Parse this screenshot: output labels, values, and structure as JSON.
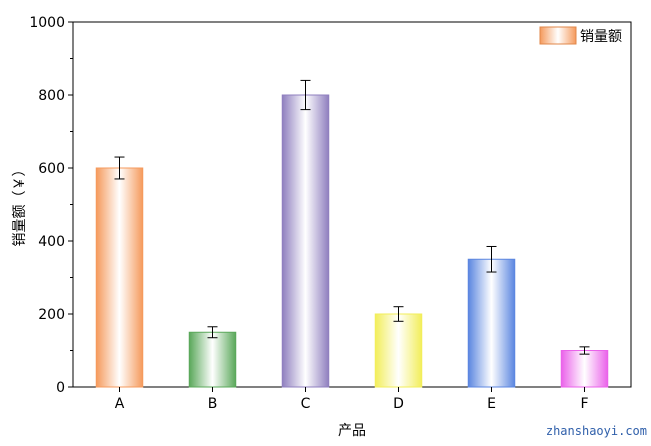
{
  "chart_data": {
    "type": "bar",
    "categories": [
      "A",
      "B",
      "C",
      "D",
      "E",
      "F"
    ],
    "series": [
      {
        "name": "销量额",
        "values": [
          600,
          150,
          800,
          200,
          350,
          100
        ],
        "errors": [
          30,
          15,
          40,
          20,
          35,
          10
        ]
      }
    ],
    "xlabel": "产品",
    "ylabel": "销量额（￥）",
    "ylim": [
      0,
      1000
    ],
    "yticks": [
      0,
      200,
      400,
      600,
      800,
      1000
    ],
    "grid": false,
    "legend_position": "top-right",
    "bar_colors": [
      "#f59a5c",
      "#5aa85a",
      "#8f7fbf",
      "#f2ee5a",
      "#5b86e0",
      "#ea62ea"
    ]
  },
  "watermark": "zhanshaoyi.com"
}
